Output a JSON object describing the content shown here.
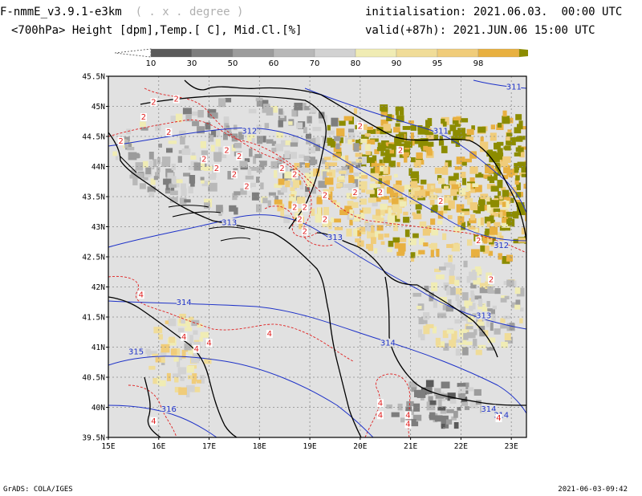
{
  "header": {
    "model": "F-nmmE_v3.9.1-e3km",
    "grid_note": "( . x . degree )",
    "fields": "<700hPa> Height [dpm],Temp.[ C], Mid.Cl.[%]",
    "init_label": "initialisation:",
    "init_value": "2021.06.03.  00:00 UTC",
    "valid_label": "valid(+87h):",
    "valid_value": "2021.JUN.06 15:00 UTC"
  },
  "colorbar": {
    "ticks": [
      "10",
      "30",
      "50",
      "60",
      "70",
      "80",
      "90",
      "95",
      "98"
    ],
    "colors": [
      "#5a5a5a",
      "#7d7d7d",
      "#9c9c9c",
      "#b8b8b8",
      "#d2d2d2",
      "#f0ecb4",
      "#f0dc98",
      "#f0cc7a",
      "#e8b040",
      "#8c8c00"
    ]
  },
  "colors": {
    "land_background": "#e1e1e1",
    "height_contour": "#1e32c8",
    "temperature_contour": "#e02020",
    "coastline": "#000000"
  },
  "map": {
    "lat_labels": [
      "45.5N",
      "45N",
      "44.5N",
      "44N",
      "43.5N",
      "43N",
      "42.5N",
      "42N",
      "41.5N",
      "41N",
      "40.5N",
      "40N",
      "39.5N"
    ],
    "lon_labels": [
      "15E",
      "16E",
      "17E",
      "18E",
      "19E",
      "20E",
      "21E",
      "22E",
      "23E"
    ],
    "height_labels": [
      {
        "text": "312",
        "lon": 17.8,
        "lat": 44.57
      },
      {
        "text": "311",
        "lon": 21.6,
        "lat": 44.57
      },
      {
        "text": "311",
        "lon": 23.05,
        "lat": 45.3
      },
      {
        "text": "313",
        "lon": 17.4,
        "lat": 43.05
      },
      {
        "text": "313",
        "lon": 19.5,
        "lat": 42.8
      },
      {
        "text": "312",
        "lon": 22.8,
        "lat": 42.67
      },
      {
        "text": "314",
        "lon": 16.5,
        "lat": 41.72
      },
      {
        "text": "313",
        "lon": 22.45,
        "lat": 41.5
      },
      {
        "text": "314",
        "lon": 20.55,
        "lat": 41.05
      },
      {
        "text": "315",
        "lon": 15.55,
        "lat": 40.9
      },
      {
        "text": "316",
        "lon": 16.2,
        "lat": 39.95
      },
      {
        "text": "314",
        "lon": 22.55,
        "lat": 39.95
      },
      {
        "text": "314",
        "lon": 22.8,
        "lat": 39.85
      }
    ],
    "temp_labels": [
      {
        "text": "2",
        "lon": 15.9,
        "lat": 45.05
      },
      {
        "text": "2",
        "lon": 16.35,
        "lat": 45.1
      },
      {
        "text": "2",
        "lon": 15.7,
        "lat": 44.8
      },
      {
        "text": "2",
        "lon": 16.2,
        "lat": 44.55
      },
      {
        "text": "2",
        "lon": 15.25,
        "lat": 44.4
      },
      {
        "text": "2",
        "lon": 17.35,
        "lat": 44.25
      },
      {
        "text": "2",
        "lon": 17.6,
        "lat": 44.15
      },
      {
        "text": "2",
        "lon": 16.9,
        "lat": 44.1
      },
      {
        "text": "2",
        "lon": 17.15,
        "lat": 43.95
      },
      {
        "text": "2",
        "lon": 17.5,
        "lat": 43.85
      },
      {
        "text": "2",
        "lon": 17.75,
        "lat": 43.65
      },
      {
        "text": "2",
        "lon": 18.45,
        "lat": 43.95
      },
      {
        "text": "2",
        "lon": 18.7,
        "lat": 43.85
      },
      {
        "text": "2",
        "lon": 20.0,
        "lat": 44.65
      },
      {
        "text": "2",
        "lon": 20.8,
        "lat": 44.25
      },
      {
        "text": "2",
        "lon": 19.9,
        "lat": 43.55
      },
      {
        "text": "2",
        "lon": 20.4,
        "lat": 43.55
      },
      {
        "text": "2",
        "lon": 19.3,
        "lat": 43.5
      },
      {
        "text": "2",
        "lon": 18.9,
        "lat": 43.3
      },
      {
        "text": "2",
        "lon": 18.7,
        "lat": 43.3
      },
      {
        "text": "2",
        "lon": 18.8,
        "lat": 43.1
      },
      {
        "text": "2",
        "lon": 19.3,
        "lat": 43.1
      },
      {
        "text": "2",
        "lon": 18.9,
        "lat": 42.9
      },
      {
        "text": "2",
        "lon": 21.6,
        "lat": 43.4
      },
      {
        "text": "2",
        "lon": 22.35,
        "lat": 42.75
      },
      {
        "text": "2",
        "lon": 22.6,
        "lat": 42.1
      },
      {
        "text": "4",
        "lon": 15.65,
        "lat": 41.85
      },
      {
        "text": "4",
        "lon": 17.0,
        "lat": 41.05
      },
      {
        "text": "4",
        "lon": 18.2,
        "lat": 41.2
      },
      {
        "text": "4",
        "lon": 16.5,
        "lat": 41.15
      },
      {
        "text": "4",
        "lon": 16.75,
        "lat": 40.95
      },
      {
        "text": "4",
        "lon": 15.9,
        "lat": 39.75
      },
      {
        "text": "4",
        "lon": 20.4,
        "lat": 40.05
      },
      {
        "text": "4",
        "lon": 20.4,
        "lat": 39.85
      },
      {
        "text": "4",
        "lon": 20.95,
        "lat": 39.85
      },
      {
        "text": "4",
        "lon": 20.95,
        "lat": 39.7
      },
      {
        "text": "4",
        "lon": 22.75,
        "lat": 39.8
      }
    ]
  },
  "footer": {
    "left": "GrADS: COLA/IGES",
    "right": "2021-06-03-09:42"
  }
}
